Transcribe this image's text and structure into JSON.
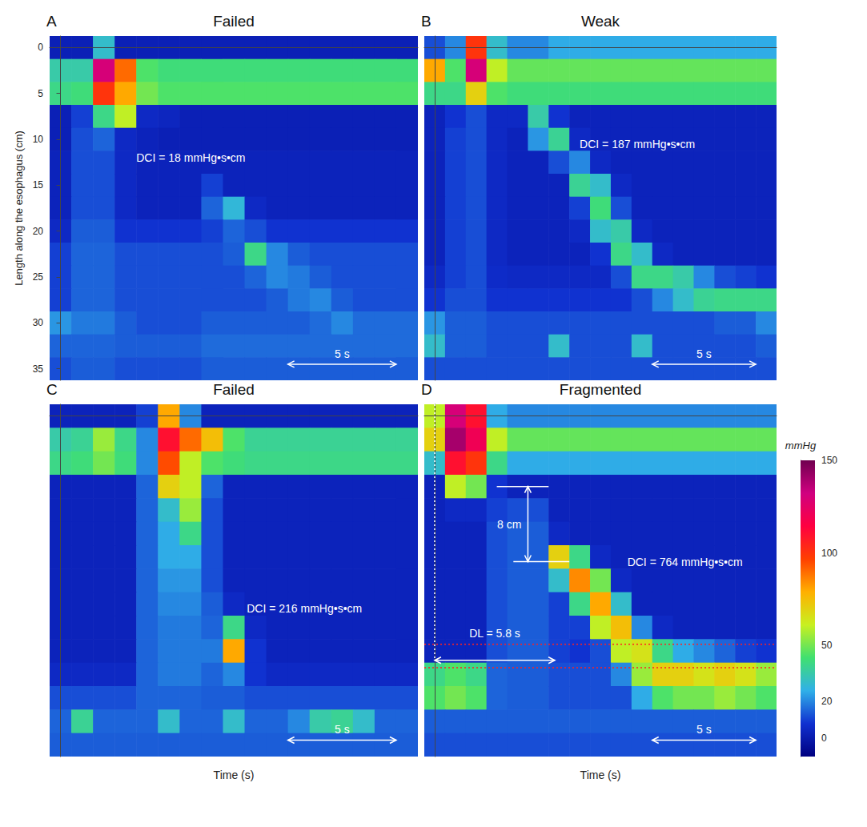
{
  "chart_data": {
    "type": "heatmap",
    "x": [
      0,
      1,
      2,
      3,
      4,
      5,
      6,
      7,
      8,
      9,
      10,
      11,
      12,
      13,
      14,
      15,
      16
    ],
    "y": [
      0,
      2.5,
      5,
      7.5,
      10,
      12.5,
      15,
      17.5,
      20,
      22.5,
      25,
      27.5,
      30,
      32.5,
      35
    ],
    "xlim": [
      -0.5,
      16.5
    ],
    "ylim": [
      -1.25,
      36.25
    ],
    "yticks": [
      0,
      5,
      10,
      15,
      20,
      25,
      30,
      35
    ],
    "colorbar": {
      "title": "mmHg",
      "range": [
        -10,
        150
      ],
      "ticks": [
        0,
        20,
        50,
        100,
        150
      ]
    },
    "panels": [
      {
        "letter": "A",
        "title": "Failed",
        "tick_labels": "y",
        "y_label": "Length along the esophagus (cm)",
        "dci": "DCI = 18 mmHg•s•cm",
        "scale_bar": {
          "value": 5,
          "label": "5 s"
        },
        "cells": [
          [
            2,
            2,
            30,
            2,
            2,
            2,
            2,
            2,
            2,
            2,
            2,
            2,
            2,
            2,
            2,
            2,
            2
          ],
          [
            35,
            35,
            130,
            90,
            45,
            42,
            42,
            42,
            42,
            42,
            42,
            42,
            42,
            42,
            42,
            42,
            42
          ],
          [
            40,
            42,
            100,
            80,
            50,
            45,
            45,
            45,
            45,
            45,
            45,
            45,
            45,
            45,
            45,
            45,
            45
          ],
          [
            2,
            10,
            40,
            60,
            5,
            4,
            2,
            2,
            2,
            2,
            2,
            2,
            2,
            2,
            2,
            2,
            2
          ],
          [
            2,
            12,
            15,
            5,
            3,
            2,
            2,
            2,
            2,
            2,
            2,
            2,
            2,
            2,
            2,
            2,
            2
          ],
          [
            3,
            12,
            12,
            5,
            3,
            3,
            3,
            3,
            3,
            3,
            3,
            3,
            3,
            3,
            3,
            3,
            3
          ],
          [
            3,
            12,
            12,
            5,
            3,
            3,
            3,
            10,
            3,
            3,
            3,
            3,
            3,
            3,
            3,
            3,
            3
          ],
          [
            3,
            12,
            12,
            5,
            3,
            3,
            3,
            15,
            28,
            5,
            3,
            3,
            3,
            3,
            3,
            3,
            3
          ],
          [
            5,
            14,
            14,
            8,
            8,
            8,
            8,
            10,
            15,
            12,
            8,
            8,
            8,
            8,
            8,
            8,
            8
          ],
          [
            10,
            15,
            15,
            12,
            12,
            12,
            12,
            12,
            14,
            40,
            20,
            14,
            12,
            12,
            12,
            12,
            12
          ],
          [
            10,
            15,
            15,
            12,
            12,
            12,
            12,
            12,
            12,
            15,
            20,
            18,
            14,
            12,
            12,
            12,
            12
          ],
          [
            10,
            15,
            15,
            12,
            12,
            12,
            12,
            12,
            12,
            12,
            14,
            18,
            20,
            14,
            12,
            12,
            12
          ],
          [
            22,
            18,
            18,
            14,
            12,
            12,
            12,
            14,
            14,
            14,
            14,
            14,
            16,
            20,
            16,
            16,
            16
          ],
          [
            15,
            15,
            15,
            14,
            14,
            14,
            14,
            16,
            16,
            16,
            16,
            16,
            16,
            16,
            16,
            16,
            16
          ],
          [
            12,
            14,
            14,
            12,
            12,
            12,
            12,
            14,
            14,
            14,
            14,
            14,
            14,
            14,
            14,
            14,
            14
          ]
        ]
      },
      {
        "letter": "B",
        "title": "Weak",
        "tick_labels": false,
        "dci": "DCI = 187 mmHg•s•cm",
        "scale_bar": {
          "value": 5,
          "label": "5 s"
        },
        "cells": [
          [
            12,
            20,
            100,
            30,
            20,
            20,
            25,
            25,
            25,
            25,
            25,
            25,
            25,
            25,
            25,
            25,
            25
          ],
          [
            80,
            45,
            130,
            60,
            48,
            48,
            48,
            48,
            48,
            48,
            48,
            48,
            48,
            48,
            48,
            48,
            48
          ],
          [
            40,
            40,
            70,
            45,
            42,
            42,
            42,
            42,
            42,
            42,
            42,
            42,
            42,
            42,
            42,
            42,
            42
          ],
          [
            3,
            8,
            12,
            5,
            5,
            35,
            8,
            3,
            3,
            3,
            3,
            3,
            3,
            3,
            3,
            3,
            3
          ],
          [
            3,
            10,
            12,
            5,
            3,
            22,
            38,
            5,
            3,
            3,
            3,
            3,
            3,
            3,
            3,
            3,
            3
          ],
          [
            3,
            10,
            12,
            5,
            3,
            3,
            12,
            20,
            5,
            3,
            3,
            3,
            3,
            3,
            3,
            3,
            3
          ],
          [
            3,
            10,
            12,
            5,
            3,
            3,
            3,
            38,
            30,
            5,
            3,
            3,
            3,
            3,
            3,
            3,
            3
          ],
          [
            3,
            10,
            12,
            5,
            3,
            3,
            3,
            10,
            42,
            12,
            3,
            3,
            3,
            3,
            3,
            3,
            3
          ],
          [
            3,
            10,
            12,
            5,
            3,
            3,
            3,
            5,
            30,
            35,
            5,
            3,
            3,
            3,
            3,
            3,
            3
          ],
          [
            3,
            10,
            12,
            5,
            3,
            3,
            3,
            3,
            8,
            40,
            30,
            5,
            3,
            3,
            3,
            3,
            3
          ],
          [
            5,
            10,
            12,
            6,
            5,
            5,
            5,
            5,
            5,
            12,
            40,
            40,
            35,
            20,
            12,
            10,
            8
          ],
          [
            8,
            12,
            12,
            8,
            8,
            8,
            8,
            8,
            8,
            8,
            12,
            20,
            30,
            38,
            40,
            40,
            40
          ],
          [
            22,
            14,
            14,
            12,
            12,
            12,
            12,
            12,
            12,
            12,
            12,
            12,
            12,
            12,
            14,
            14,
            20
          ],
          [
            30,
            14,
            14,
            12,
            12,
            12,
            30,
            12,
            12,
            12,
            30,
            12,
            12,
            12,
            12,
            12,
            14
          ],
          [
            12,
            12,
            12,
            12,
            12,
            12,
            12,
            12,
            12,
            12,
            12,
            12,
            12,
            12,
            12,
            12,
            12
          ]
        ]
      },
      {
        "letter": "C",
        "title": "Failed",
        "tick_labels": false,
        "x_label": "Time (s)",
        "dci": "DCI = 216 mmHg•s•cm",
        "scale_bar": {
          "value": 5,
          "label": "5 s"
        },
        "cells": [
          [
            3,
            3,
            3,
            3,
            10,
            80,
            20,
            3,
            3,
            3,
            3,
            3,
            3,
            3,
            3,
            3,
            3
          ],
          [
            35,
            38,
            55,
            40,
            20,
            110,
            90,
            75,
            45,
            38,
            38,
            38,
            38,
            38,
            38,
            38,
            38
          ],
          [
            40,
            42,
            50,
            42,
            20,
            95,
            60,
            45,
            42,
            40,
            40,
            40,
            40,
            40,
            40,
            40,
            40
          ],
          [
            3,
            3,
            3,
            3,
            15,
            70,
            60,
            15,
            3,
            3,
            3,
            3,
            3,
            3,
            3,
            3,
            3
          ],
          [
            3,
            3,
            3,
            3,
            15,
            30,
            55,
            12,
            3,
            3,
            3,
            3,
            3,
            3,
            3,
            3,
            3
          ],
          [
            3,
            3,
            3,
            3,
            15,
            25,
            40,
            12,
            3,
            3,
            3,
            3,
            3,
            3,
            3,
            3,
            3
          ],
          [
            3,
            3,
            3,
            3,
            15,
            25,
            25,
            12,
            3,
            3,
            3,
            3,
            3,
            3,
            3,
            3,
            3
          ],
          [
            3,
            3,
            3,
            3,
            15,
            22,
            22,
            12,
            3,
            3,
            3,
            3,
            3,
            3,
            3,
            3,
            3
          ],
          [
            3,
            3,
            3,
            3,
            15,
            20,
            20,
            14,
            5,
            3,
            3,
            3,
            3,
            3,
            3,
            3,
            3
          ],
          [
            3,
            3,
            3,
            3,
            15,
            18,
            18,
            15,
            40,
            5,
            3,
            3,
            3,
            3,
            3,
            3,
            3
          ],
          [
            3,
            3,
            3,
            3,
            15,
            18,
            18,
            18,
            80,
            8,
            3,
            3,
            3,
            3,
            3,
            3,
            3
          ],
          [
            5,
            5,
            5,
            5,
            15,
            18,
            18,
            15,
            20,
            8,
            5,
            5,
            5,
            5,
            5,
            5,
            5
          ],
          [
            12,
            12,
            12,
            12,
            15,
            15,
            15,
            14,
            14,
            12,
            12,
            12,
            12,
            12,
            12,
            12,
            12
          ],
          [
            15,
            38,
            15,
            15,
            15,
            30,
            15,
            15,
            30,
            15,
            15,
            20,
            35,
            38,
            30,
            15,
            15
          ],
          [
            14,
            14,
            14,
            14,
            14,
            14,
            14,
            14,
            14,
            14,
            14,
            14,
            14,
            14,
            14,
            14,
            14
          ]
        ]
      },
      {
        "letter": "D",
        "title": "Fragmented",
        "tick_labels": false,
        "x_label": "Time (s)",
        "dci": "DCI = 764 mmHg•s•cm",
        "scale_bar": {
          "value": 5,
          "label": "5 s"
        },
        "gap": {
          "value": 8,
          "label": "8 cm"
        },
        "latency": {
          "value": 5.8,
          "label": "DL = 5.8 s"
        },
        "cells": [
          [
            60,
            130,
            110,
            25,
            20,
            20,
            20,
            20,
            20,
            20,
            20,
            20,
            20,
            20,
            20,
            20,
            20
          ],
          [
            70,
            140,
            120,
            60,
            48,
            48,
            48,
            48,
            48,
            48,
            48,
            48,
            48,
            48,
            48,
            48,
            48
          ],
          [
            30,
            110,
            100,
            40,
            25,
            25,
            25,
            25,
            25,
            25,
            25,
            25,
            25,
            25,
            25,
            25,
            25
          ],
          [
            3,
            60,
            50,
            8,
            3,
            3,
            3,
            3,
            3,
            3,
            3,
            3,
            3,
            3,
            3,
            3,
            3
          ],
          [
            3,
            5,
            5,
            10,
            12,
            12,
            3,
            3,
            3,
            3,
            3,
            3,
            3,
            3,
            3,
            3,
            3
          ],
          [
            3,
            3,
            3,
            12,
            14,
            14,
            5,
            3,
            3,
            3,
            3,
            3,
            3,
            3,
            3,
            3,
            3
          ],
          [
            3,
            3,
            3,
            12,
            14,
            14,
            70,
            40,
            5,
            3,
            3,
            3,
            3,
            3,
            3,
            3,
            3
          ],
          [
            3,
            3,
            3,
            12,
            14,
            14,
            30,
            85,
            50,
            5,
            3,
            3,
            3,
            3,
            3,
            3,
            3
          ],
          [
            3,
            3,
            3,
            12,
            14,
            14,
            10,
            40,
            80,
            30,
            3,
            3,
            3,
            3,
            3,
            3,
            3
          ],
          [
            3,
            3,
            3,
            12,
            14,
            14,
            10,
            10,
            60,
            75,
            20,
            5,
            3,
            3,
            3,
            3,
            3
          ],
          [
            3,
            3,
            3,
            12,
            14,
            14,
            10,
            8,
            12,
            60,
            65,
            40,
            25,
            20,
            15,
            10,
            8
          ],
          [
            40,
            45,
            40,
            15,
            14,
            14,
            12,
            12,
            12,
            20,
            55,
            70,
            70,
            65,
            70,
            65,
            55
          ],
          [
            45,
            50,
            45,
            15,
            14,
            14,
            12,
            12,
            12,
            12,
            25,
            45,
            50,
            50,
            55,
            50,
            45
          ],
          [
            14,
            14,
            14,
            14,
            14,
            14,
            14,
            14,
            14,
            14,
            14,
            14,
            14,
            14,
            14,
            14,
            14
          ],
          [
            12,
            12,
            12,
            12,
            12,
            12,
            12,
            12,
            12,
            12,
            12,
            12,
            12,
            12,
            12,
            12,
            12
          ]
        ]
      }
    ]
  }
}
